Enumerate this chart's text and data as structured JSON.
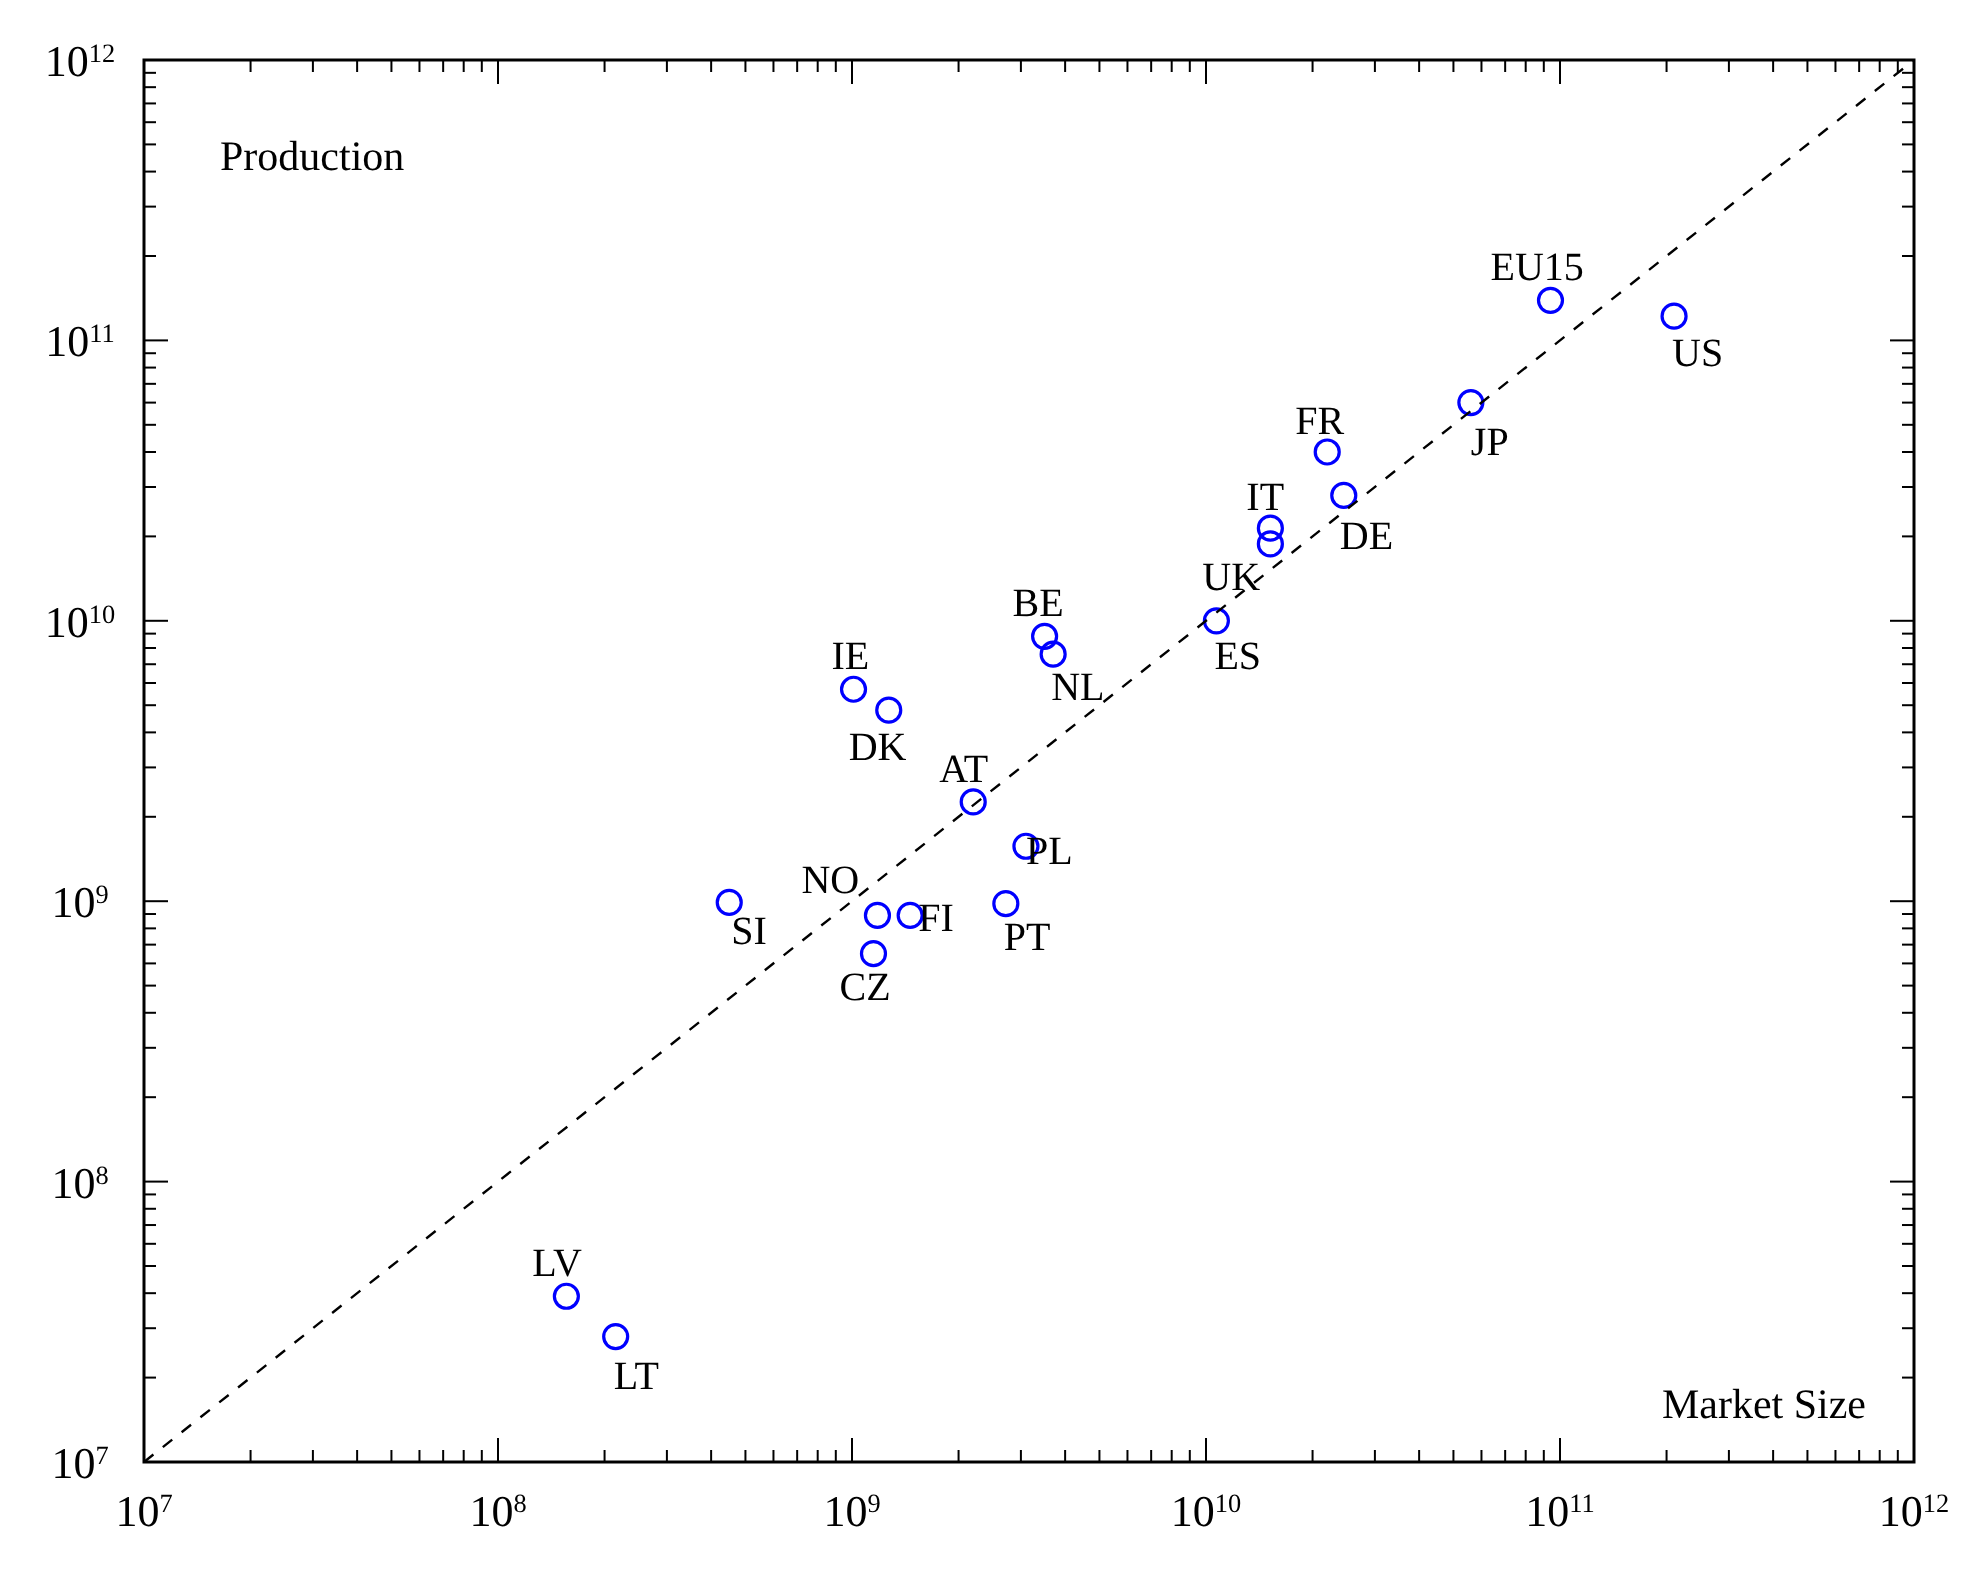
{
  "chart_data": {
    "type": "scatter",
    "xlabel": "Market Size",
    "ylabel": "Production",
    "log": "xy",
    "grid": false,
    "xlim": [
      10000000,
      1000000000000
    ],
    "ylim": [
      10000000,
      1000000000000
    ],
    "xticks": [
      {
        "value": 10000000,
        "label": "10$^{7}$"
      },
      {
        "value": 100000000,
        "label": "10$^{8}$"
      },
      {
        "value": 1000000000,
        "label": "10$^{9}$"
      },
      {
        "value": 10000000000,
        "label": "10$^{10}$"
      },
      {
        "value": 100000000000,
        "label": "10$^{11}$"
      },
      {
        "value": 1000000000000,
        "label": "10$^{12}$"
      }
    ],
    "yticks": [
      {
        "value": 10000000,
        "label": "10$^{7}$"
      },
      {
        "value": 100000000,
        "label": "10$^{8}$"
      },
      {
        "value": 1000000000,
        "label": "10$^{9}$"
      },
      {
        "value": 10000000000,
        "label": "10$^{10}$"
      },
      {
        "value": 100000000000,
        "label": "10$^{11}$"
      },
      {
        "value": 1000000000000,
        "label": "10$^{12}$"
      }
    ],
    "series": [
      {
        "color": "#0000ff",
        "marker": "circle",
        "x": [
          94000000000,
          210000000000,
          56000000000,
          22000000000,
          24500000000,
          15200000000,
          15200000000,
          10700000000,
          3500000000,
          3700000000,
          1010000000,
          1270000000,
          2200000000,
          3100000000,
          450000000,
          1180000000,
          1460000000,
          2720000000,
          1150000000,
          156000000,
          215000000
        ],
        "values": [
          139000000000,
          122000000000,
          60000000000,
          40000000000,
          28000000000,
          21400000000,
          18800000000,
          10000000000,
          8800000000,
          7600000000,
          5700000000,
          4800000000,
          2260000000,
          1570000000,
          990000000,
          890000000,
          890000000,
          980000000,
          650000000,
          39000000,
          28000000
        ]
      },
      {
        "type": "line",
        "color": "#000000",
        "line_style": "dashed",
        "x": [
          10000000,
          1000000000000
        ],
        "values": [
          10000000,
          1000000000000
        ]
      }
    ],
    "annotations": [
      {
        "text": "EU15",
        "x": 94000000000,
        "y": 139000000000
      },
      {
        "text": "US",
        "x": 210000000000,
        "y": 122000000000
      },
      {
        "text": "JP",
        "x": 56000000000,
        "y": 60000000000
      },
      {
        "text": "FR",
        "x": 22000000000,
        "y": 40000000000
      },
      {
        "text": "DE",
        "x": 24500000000,
        "y": 28000000000
      },
      {
        "text": "IT",
        "x": 15200000000,
        "y": 21400000000
      },
      {
        "text": "UK",
        "x": 15200000000,
        "y": 18800000000
      },
      {
        "text": "ES",
        "x": 10700000000,
        "y": 10000000000
      },
      {
        "text": "BE",
        "x": 3500000000,
        "y": 8800000000
      },
      {
        "text": "NL",
        "x": 3700000000,
        "y": 7600000000
      },
      {
        "text": "IE",
        "x": 1010000000,
        "y": 5700000000
      },
      {
        "text": "DK",
        "x": 1270000000,
        "y": 4800000000
      },
      {
        "text": "AT",
        "x": 2200000000,
        "y": 2260000000
      },
      {
        "text": "PL",
        "x": 3100000000,
        "y": 1570000000
      },
      {
        "text": "SI",
        "x": 450000000,
        "y": 990000000
      },
      {
        "text": "NO",
        "x": 1180000000,
        "y": 890000000
      },
      {
        "text": "FI",
        "x": 1460000000,
        "y": 890000000
      },
      {
        "text": "PT",
        "x": 2720000000,
        "y": 980000000
      },
      {
        "text": "CZ",
        "x": 1150000000,
        "y": 650000000
      },
      {
        "text": "LV",
        "x": 156000000,
        "y": 39000000
      },
      {
        "text": "LT",
        "x": 215000000,
        "y": 28000000
      }
    ]
  }
}
